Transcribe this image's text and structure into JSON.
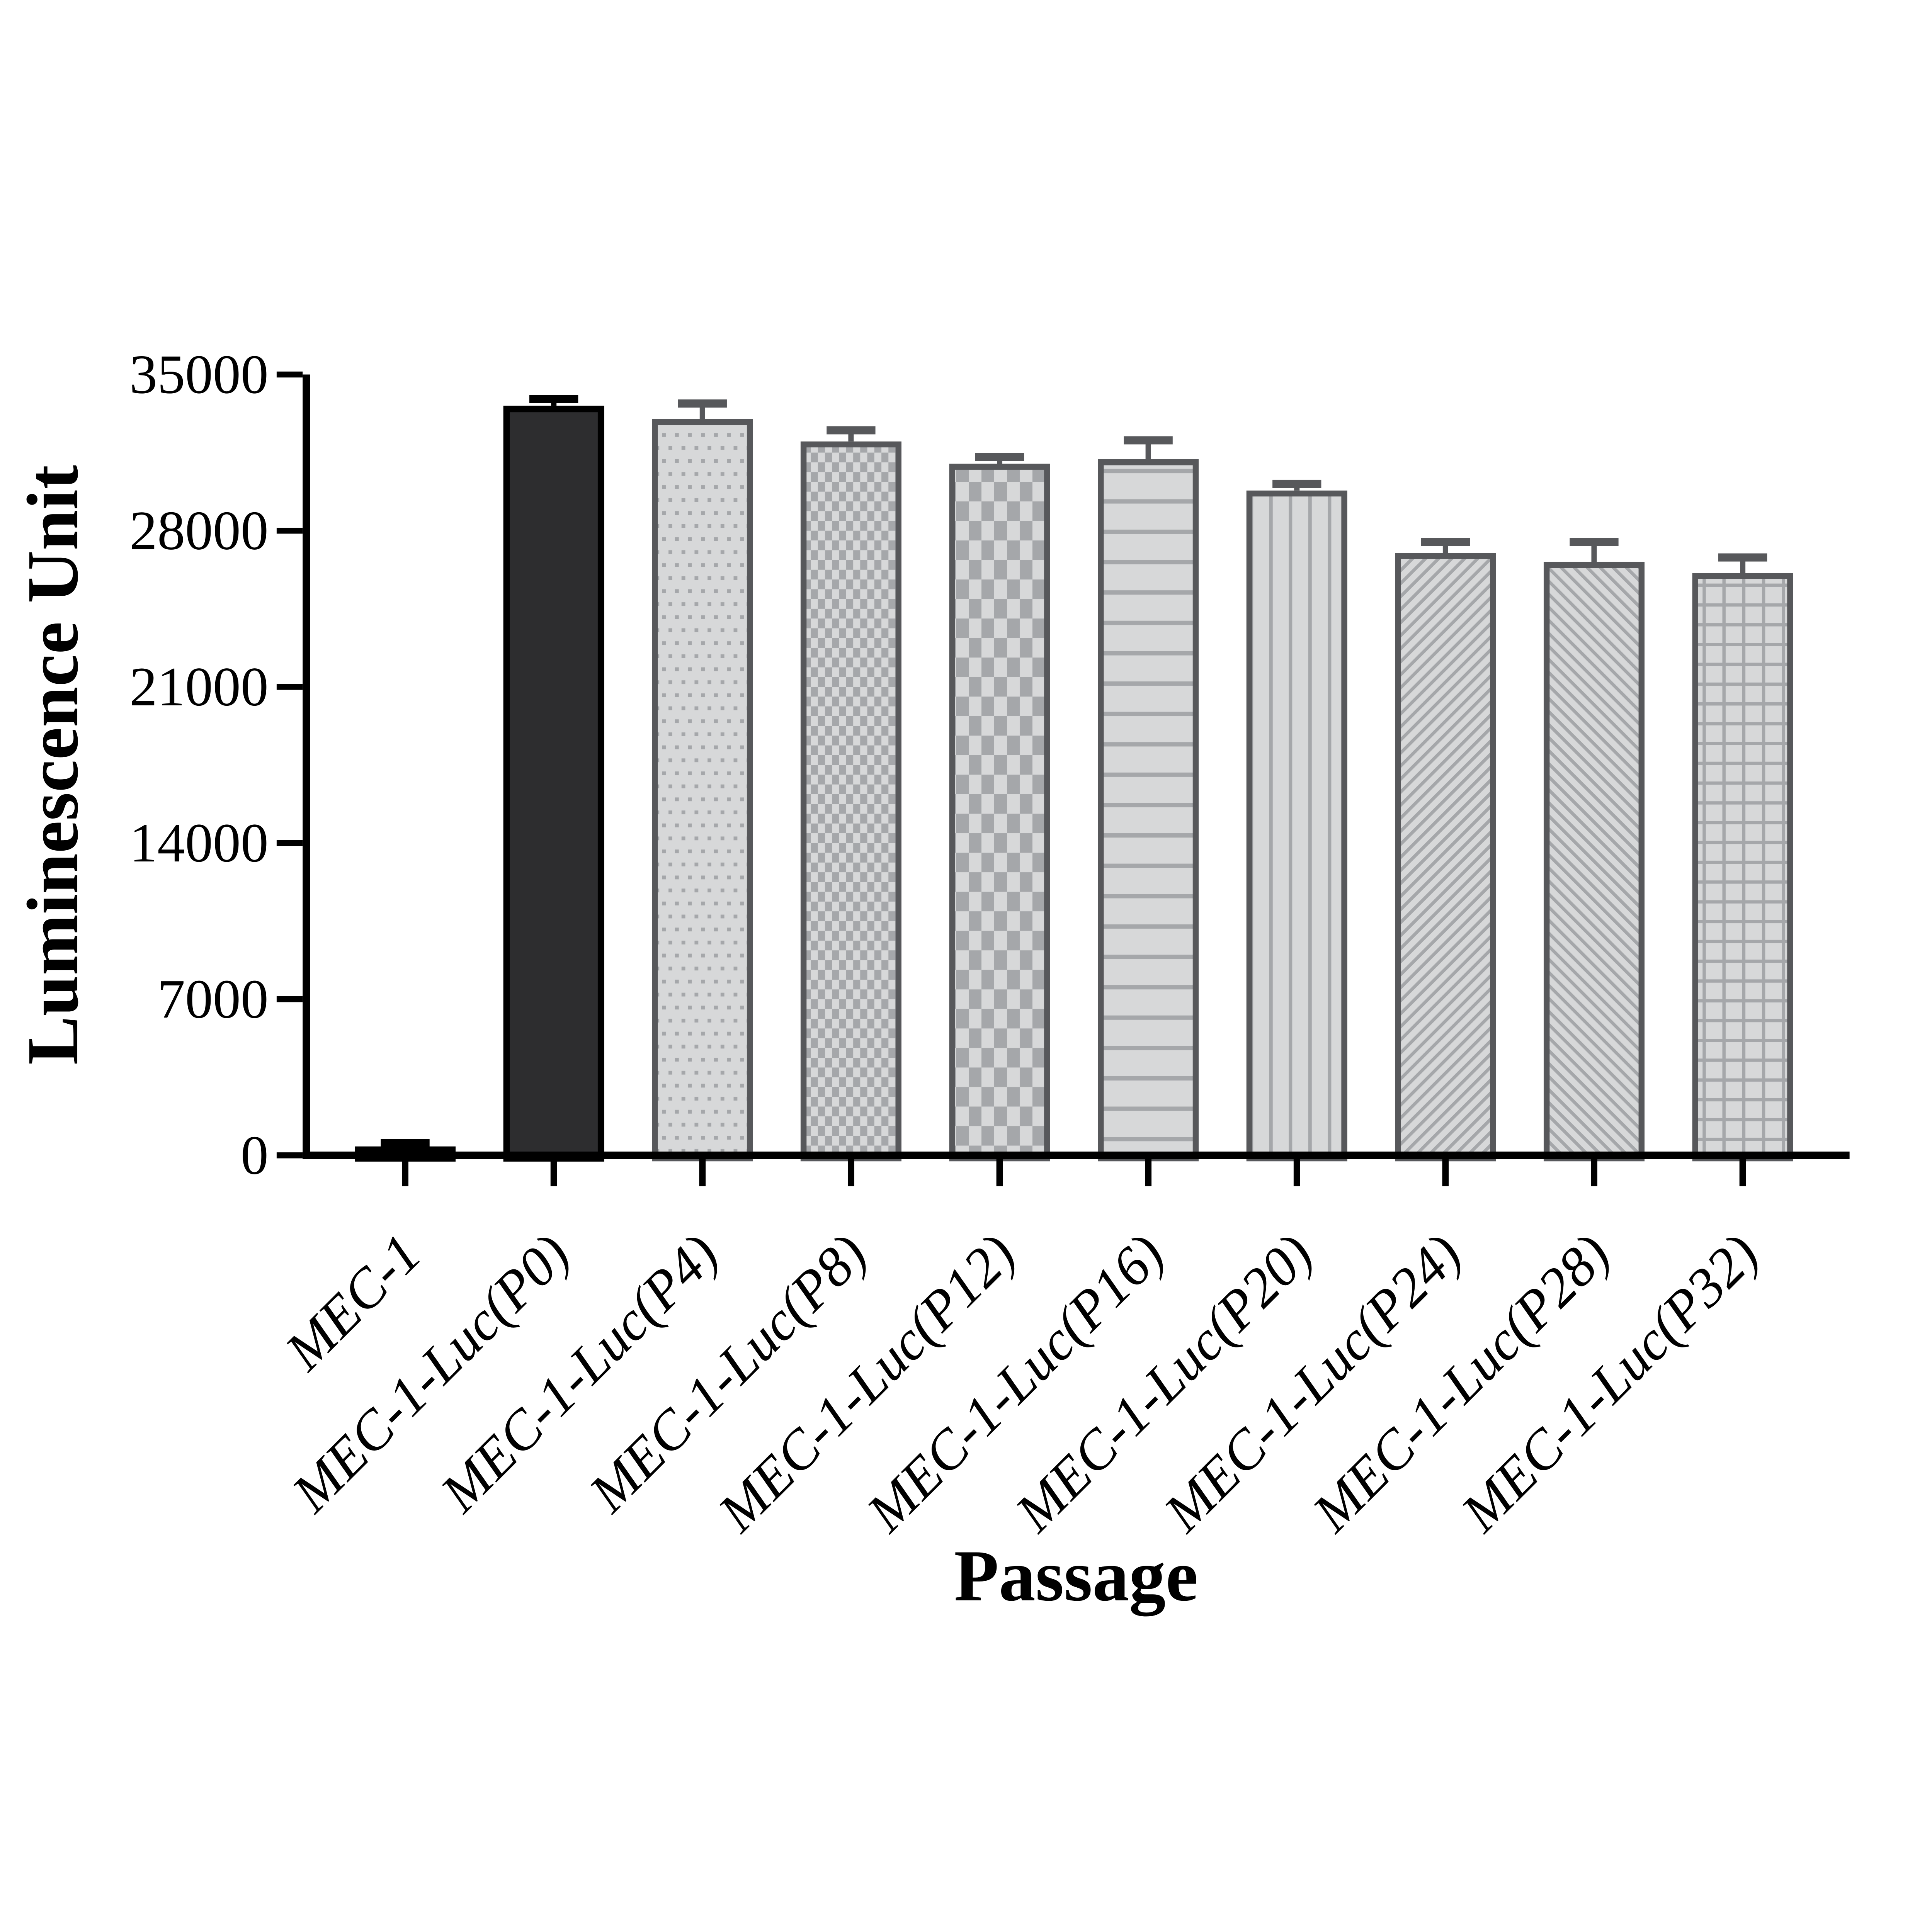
{
  "chart_data": {
    "type": "bar",
    "title": "",
    "xlabel": "Passage",
    "ylabel": "Luminescence Unit",
    "categories": [
      "MEC-1",
      "MEC-1-Luc(P0)",
      "MEC-1-Luc(P4)",
      "MEC-1-Luc(P8)",
      "MEC-1-Luc(P12)",
      "MEC-1-Luc(P16)",
      "MEC-1-Luc(P20)",
      "MEC-1-Luc(P24)",
      "MEC-1-Luc(P28)",
      "MEC-1-Luc(P32)"
    ],
    "series": [
      {
        "name": "Luminescence Unit",
        "values": [
          400,
          33600,
          33000,
          32000,
          31000,
          31200,
          29800,
          27000,
          26600,
          26100
        ]
      }
    ],
    "errors_sd_upper": [
      150,
      300,
      700,
      500,
      300,
      850,
      300,
      500,
      900,
      700
    ],
    "ylim": [
      0,
      35000
    ],
    "y_ticks": [
      0,
      7000,
      14000,
      21000,
      28000,
      35000
    ],
    "y_tick_labels": [
      "0",
      "7000",
      "14000",
      "21000",
      "28000",
      "35000"
    ],
    "grid": false,
    "legend": "none",
    "bar_patterns": [
      "solid-black",
      "solid-dark",
      "dots",
      "checker-small",
      "checker-large",
      "hlines",
      "vlines",
      "diag-up",
      "diag-down",
      "grid"
    ],
    "colors": {
      "black": "#000000",
      "p0_fill": "#2d2d2f",
      "pattern_bg": "#d7d8d9",
      "pattern_line": "#a5a7aa",
      "border_gray": "#57585b",
      "axis": "#000000",
      "background": "#ffffff"
    }
  }
}
